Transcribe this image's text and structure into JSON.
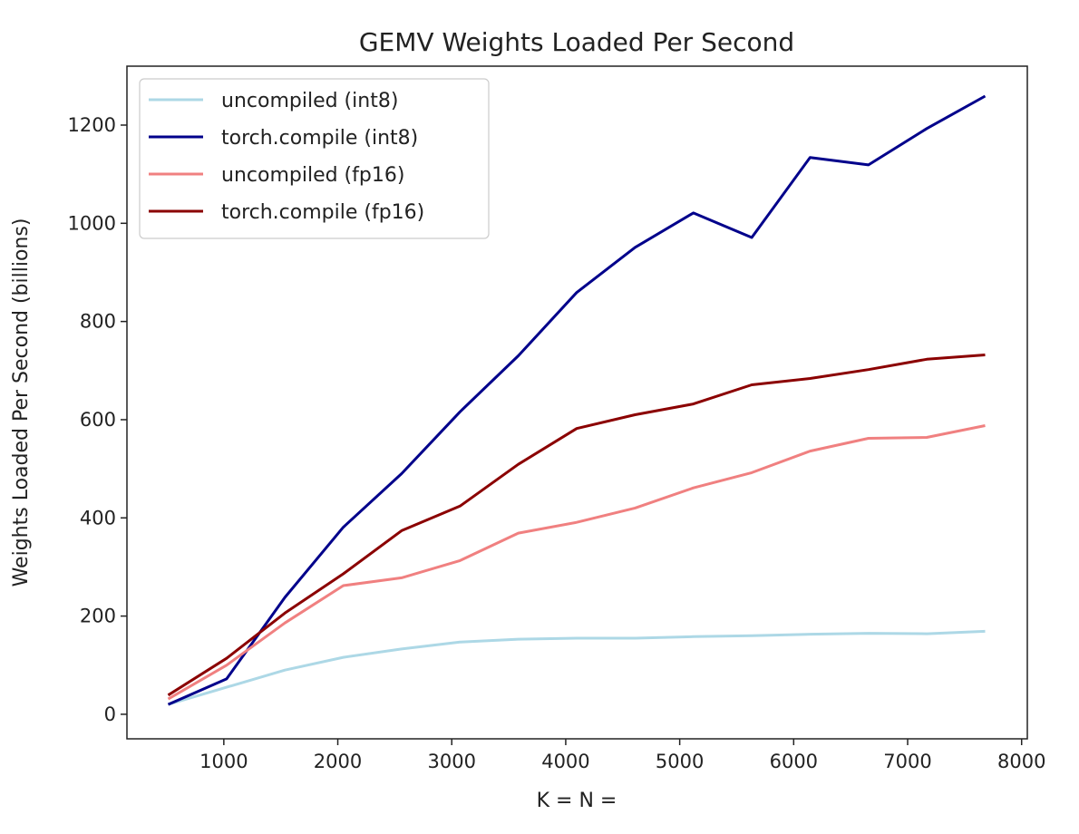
{
  "chart_data": {
    "type": "line",
    "title": "GEMV Weights Loaded Per Second",
    "xlabel": "K = N =",
    "ylabel": "Weights Loaded Per Second (billions)",
    "xlim": [
      150,
      8050
    ],
    "ylim": [
      -50,
      1320
    ],
    "xticks": [
      1000,
      2000,
      3000,
      4000,
      5000,
      6000,
      7000,
      8000
    ],
    "yticks": [
      0,
      200,
      400,
      600,
      800,
      1000,
      1200
    ],
    "grid": false,
    "legend": "top-left",
    "x": [
      512,
      1024,
      1536,
      2048,
      2560,
      3072,
      3584,
      4096,
      4608,
      5120,
      5632,
      6144,
      6656,
      7168,
      7680
    ],
    "series": [
      {
        "name": "uncompiled (int8)",
        "color": "#add8e6",
        "values": [
          20,
          55,
          90,
          116,
          133,
          147,
          153,
          155,
          155,
          158,
          160,
          163,
          165,
          164,
          169
        ]
      },
      {
        "name": "torch.compile (int8)",
        "color": "#00008b",
        "values": [
          20,
          72,
          238,
          381,
          490,
          616,
          730,
          859,
          951,
          1021,
          971,
          1134,
          1119,
          1193,
          1259
        ]
      },
      {
        "name": "uncompiled (fp16)",
        "color": "#f08080",
        "values": [
          31,
          100,
          186,
          262,
          278,
          313,
          369,
          391,
          420,
          461,
          492,
          536,
          562,
          564,
          588
        ]
      },
      {
        "name": "torch.compile (fp16)",
        "color": "#8b0000",
        "values": [
          39,
          114,
          206,
          286,
          374,
          424,
          509,
          582,
          610,
          632,
          671,
          684,
          702,
          723,
          732
        ]
      }
    ]
  }
}
